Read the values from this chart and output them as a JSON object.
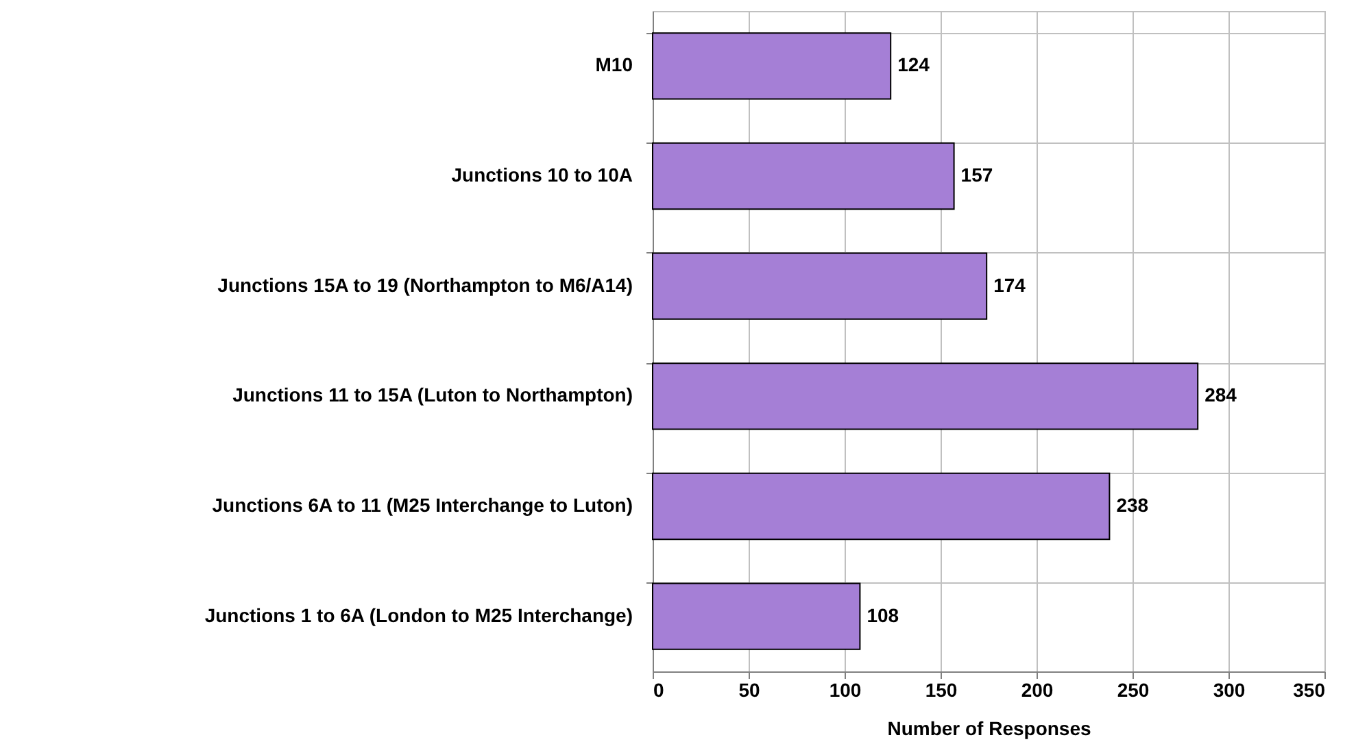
{
  "chart_data": {
    "type": "bar",
    "orientation": "horizontal",
    "xlabel": "Number of Responses",
    "categories": [
      "M10",
      "Junctions 10 to 10A",
      "Junctions 15A to 19 (Northampton to M6/A14)",
      "Junctions 11 to 15A (Luton to Northampton)",
      "Junctions 6A to 11 (M25 Interchange to Luton)",
      "Junctions 1 to 6A (London to M25 Interchange)"
    ],
    "values": [
      124,
      157,
      174,
      284,
      238,
      108
    ],
    "color": "#a57fd6",
    "xlim": [
      0,
      350
    ],
    "xticks": [
      0,
      50,
      100,
      150,
      200,
      250,
      300,
      350
    ],
    "grid": true,
    "data_labels": true
  }
}
